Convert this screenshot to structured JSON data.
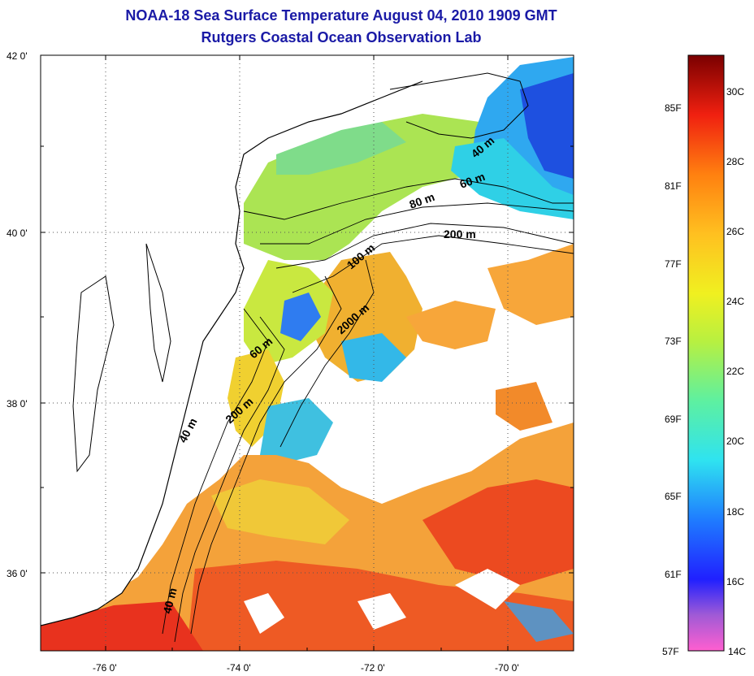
{
  "title": "NOAA-18 Sea Surface Temperature August 04, 2010 1909 GMT",
  "subtitle": "Rutgers Coastal Ocean Observation Lab",
  "map": {
    "lat_labels": [
      "42 0'",
      "40 0'",
      "38 0'",
      "36 0'"
    ],
    "lon_labels": [
      "-76 0'",
      "-74 0'",
      "-72 0'",
      "-70 0'"
    ],
    "depth_labels": [
      "40 m",
      "60 m",
      "80 m",
      "200 m",
      "100 m",
      "2000 m",
      "60 m",
      "200 m",
      "40 m",
      "40 m"
    ],
    "grid": "dotted"
  },
  "colorbar": {
    "fahrenheit": [
      "85F",
      "81F",
      "77F",
      "73F",
      "69F",
      "65F",
      "61F",
      "57F"
    ],
    "celsius": [
      "30C",
      "28C",
      "26C",
      "24C",
      "22C",
      "20C",
      "18C",
      "16C",
      "14C"
    ]
  },
  "colors": {
    "title": "#1a1aa6",
    "warm": "#e8321e",
    "orange": "#f59a2a",
    "yellow": "#e8e624",
    "green": "#8fe35a",
    "cyan": "#2fd0e6",
    "blue": "#1e5ce0",
    "magenta": "#e04fd6"
  }
}
